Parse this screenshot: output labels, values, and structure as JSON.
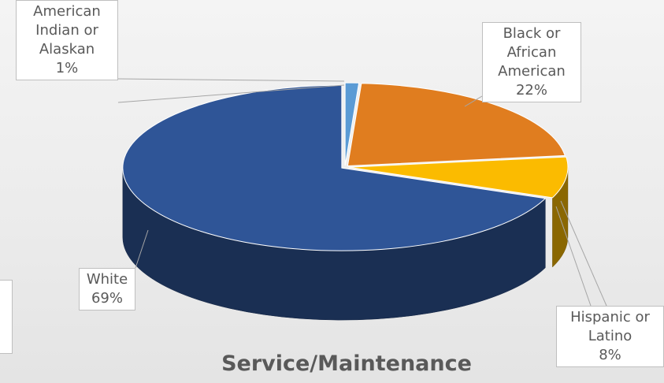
{
  "chart_data": {
    "type": "pie3d",
    "title": "Service/Maintenance",
    "categories": [
      "American Indian or Alaskan",
      "Black or African American",
      "Hispanic or Latino",
      "White"
    ],
    "values": [
      1,
      22,
      8,
      69
    ],
    "value_labels": [
      "1%",
      "22%",
      "8%",
      "69%"
    ],
    "colors": [
      "#5b9bd5",
      "#e07d1f",
      "#fbbb00",
      "#2f5597"
    ]
  }
}
